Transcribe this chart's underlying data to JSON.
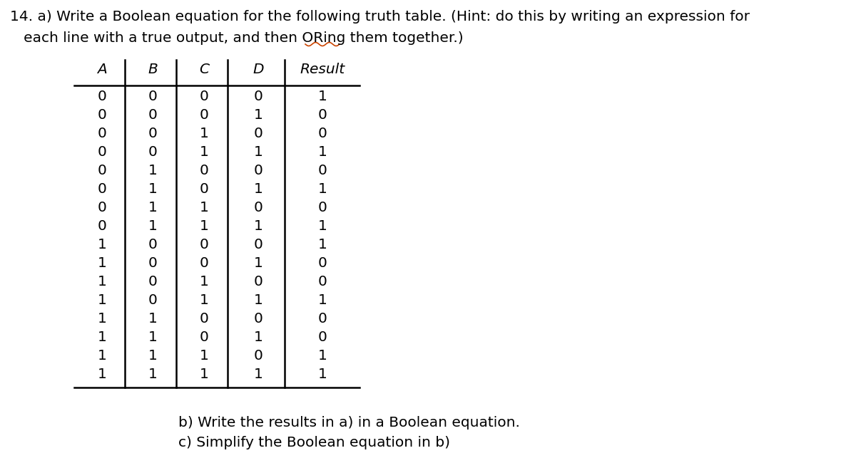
{
  "title_line1": "14. a) Write a Boolean equation for the following truth table. (Hint: do this by writing an expression for",
  "title_line2": "   each line with a true output, and then ORing them together.)",
  "headers": [
    "A",
    "B",
    "C",
    "D",
    "Result"
  ],
  "rows": [
    [
      0,
      0,
      0,
      0,
      1
    ],
    [
      0,
      0,
      0,
      1,
      0
    ],
    [
      0,
      0,
      1,
      0,
      0
    ],
    [
      0,
      0,
      1,
      1,
      1
    ],
    [
      0,
      1,
      0,
      0,
      0
    ],
    [
      0,
      1,
      0,
      1,
      1
    ],
    [
      0,
      1,
      1,
      0,
      0
    ],
    [
      0,
      1,
      1,
      1,
      1
    ],
    [
      1,
      0,
      0,
      0,
      1
    ],
    [
      1,
      0,
      0,
      1,
      0
    ],
    [
      1,
      0,
      1,
      0,
      0
    ],
    [
      1,
      0,
      1,
      1,
      1
    ],
    [
      1,
      1,
      0,
      0,
      0
    ],
    [
      1,
      1,
      0,
      1,
      0
    ],
    [
      1,
      1,
      1,
      0,
      1
    ],
    [
      1,
      1,
      1,
      1,
      1
    ]
  ],
  "footer_line1": "b) Write the results in a) in a Boolean equation.",
  "footer_line2": "c) Simplify the Boolean equation in b)",
  "bg_color": "#ffffff",
  "text_color": "#000000",
  "title_fontsize": 14.5,
  "table_fontsize": 14.5,
  "footer_fontsize": 14.5
}
